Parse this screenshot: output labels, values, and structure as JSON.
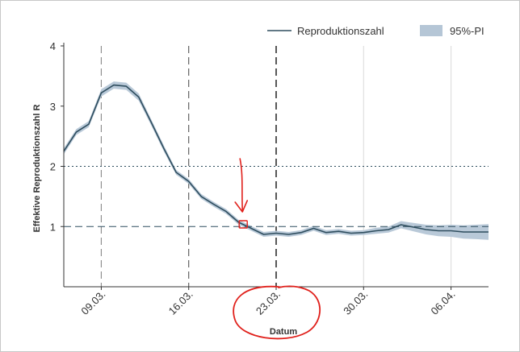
{
  "chart_data": {
    "type": "line",
    "title": "",
    "xlabel": "Datum",
    "ylabel": "Effektive Reproduktionszahl R",
    "ylim": [
      0,
      4
    ],
    "yticks": [
      "1",
      "2",
      "3",
      "4"
    ],
    "xticks": [
      "09.03.",
      "16.03.",
      "23.03.",
      "30.03.",
      "06.04."
    ],
    "xlim_days": [
      0,
      34
    ],
    "legend_position": "top-right",
    "x_tick_days": [
      3,
      10,
      17,
      24,
      31
    ],
    "x": [
      "06.03.",
      "07.03.",
      "08.03.",
      "09.03.",
      "10.03.",
      "11.03.",
      "12.03.",
      "13.03.",
      "14.03.",
      "15.03.",
      "16.03.",
      "17.03.",
      "18.03.",
      "19.03.",
      "20.03.",
      "21.03.",
      "22.03.",
      "23.03.",
      "24.03.",
      "25.03.",
      "26.03.",
      "27.03.",
      "28.03.",
      "29.03.",
      "30.03.",
      "31.03.",
      "01.04.",
      "02.04.",
      "03.04.",
      "04.04.",
      "05.04.",
      "06.04.",
      "07.04.",
      "08.04.",
      "09.04."
    ],
    "series": [
      {
        "name": "Reproduktionszahl",
        "color": "#2e4d5e",
        "values": [
          2.25,
          2.57,
          2.7,
          3.22,
          3.35,
          3.33,
          3.15,
          2.73,
          2.3,
          1.9,
          1.75,
          1.5,
          1.37,
          1.25,
          1.07,
          0.97,
          0.87,
          0.89,
          0.87,
          0.9,
          0.97,
          0.9,
          0.92,
          0.89,
          0.9,
          0.93,
          0.95,
          1.03,
          0.99,
          0.95,
          0.93,
          0.93,
          0.91,
          0.91,
          0.91
        ]
      },
      {
        "name": "95%-PI",
        "color": "#b5c6d6",
        "band": true,
        "lower": [
          2.2,
          2.52,
          2.65,
          3.16,
          3.29,
          3.27,
          3.09,
          2.68,
          2.25,
          1.86,
          1.71,
          1.46,
          1.33,
          1.21,
          1.03,
          0.93,
          0.83,
          0.85,
          0.83,
          0.86,
          0.93,
          0.86,
          0.88,
          0.85,
          0.86,
          0.88,
          0.9,
          0.97,
          0.92,
          0.87,
          0.84,
          0.83,
          0.8,
          0.79,
          0.78
        ],
        "upper": [
          2.3,
          2.62,
          2.75,
          3.28,
          3.41,
          3.39,
          3.21,
          2.78,
          2.35,
          1.94,
          1.79,
          1.54,
          1.41,
          1.29,
          1.11,
          1.01,
          0.91,
          0.93,
          0.91,
          0.94,
          1.01,
          0.94,
          0.96,
          0.93,
          0.94,
          0.98,
          1.0,
          1.09,
          1.06,
          1.03,
          1.02,
          1.03,
          1.02,
          1.03,
          1.04
        ]
      }
    ],
    "reference_lines": [
      {
        "axis": "y",
        "value": 1,
        "style": "dashed",
        "color": "#2e4d5e"
      },
      {
        "axis": "y",
        "value": 2,
        "style": "dotted",
        "color": "#2e4d5e"
      }
    ],
    "vertical_lines": [
      {
        "day": 3,
        "style": "dashed",
        "color": "#8a8a8a"
      },
      {
        "day": 10,
        "style": "dashed",
        "color": "#555555"
      },
      {
        "day": 17,
        "style": "dashed",
        "color": "#111111"
      },
      {
        "day": 24,
        "style": "solid",
        "color": "#dddddd"
      },
      {
        "day": 31,
        "style": "solid",
        "color": "#dddddd"
      }
    ],
    "annotations": [
      {
        "type": "arrow",
        "color": "#e0201b",
        "target_day": 14.3,
        "target_value": 1.03
      },
      {
        "type": "box",
        "color": "#e0201b",
        "day": 14.3,
        "value": 1.03
      },
      {
        "type": "ellipse",
        "color": "#e0201b",
        "around": "23.03. / Datum"
      }
    ]
  }
}
